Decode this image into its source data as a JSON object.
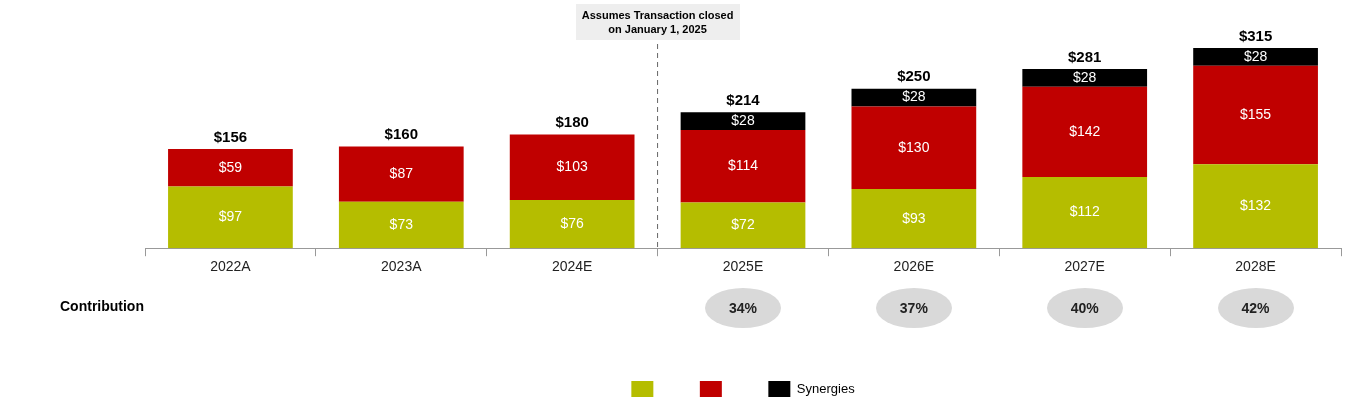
{
  "chart_data": {
    "type": "bar",
    "stacked": true,
    "categories": [
      "2022A",
      "2023A",
      "2024E",
      "2025E",
      "2026E",
      "2027E",
      "2028E"
    ],
    "series": [
      {
        "color": "#b5bd00",
        "values": [
          97,
          73,
          76,
          72,
          93,
          112,
          132
        ],
        "value_labels": [
          "$97",
          "$73",
          "$76",
          "$72",
          "$93",
          "$112",
          "$132"
        ]
      },
      {
        "color": "#c00000",
        "values": [
          59,
          87,
          103,
          114,
          130,
          142,
          155
        ],
        "value_labels": [
          "$59",
          "$87",
          "$103",
          "$114",
          "$130",
          "$142",
          "$155"
        ]
      },
      {
        "name": "Synergies",
        "color": "#000000",
        "values": [
          null,
          null,
          null,
          28,
          28,
          28,
          28
        ],
        "value_labels": [
          null,
          null,
          null,
          "$28",
          "$28",
          "$28",
          "$28"
        ]
      }
    ],
    "totals": [
      "$156",
      "$160",
      "$180",
      "$214",
      "$250",
      "$281",
      "$315"
    ],
    "annotations": [
      "Assumes Transaction closed on January 1, 2025",
      "Contribution",
      "34%",
      "37%",
      "40%",
      "42%"
    ],
    "legend": "bottom",
    "grid": false
  }
}
